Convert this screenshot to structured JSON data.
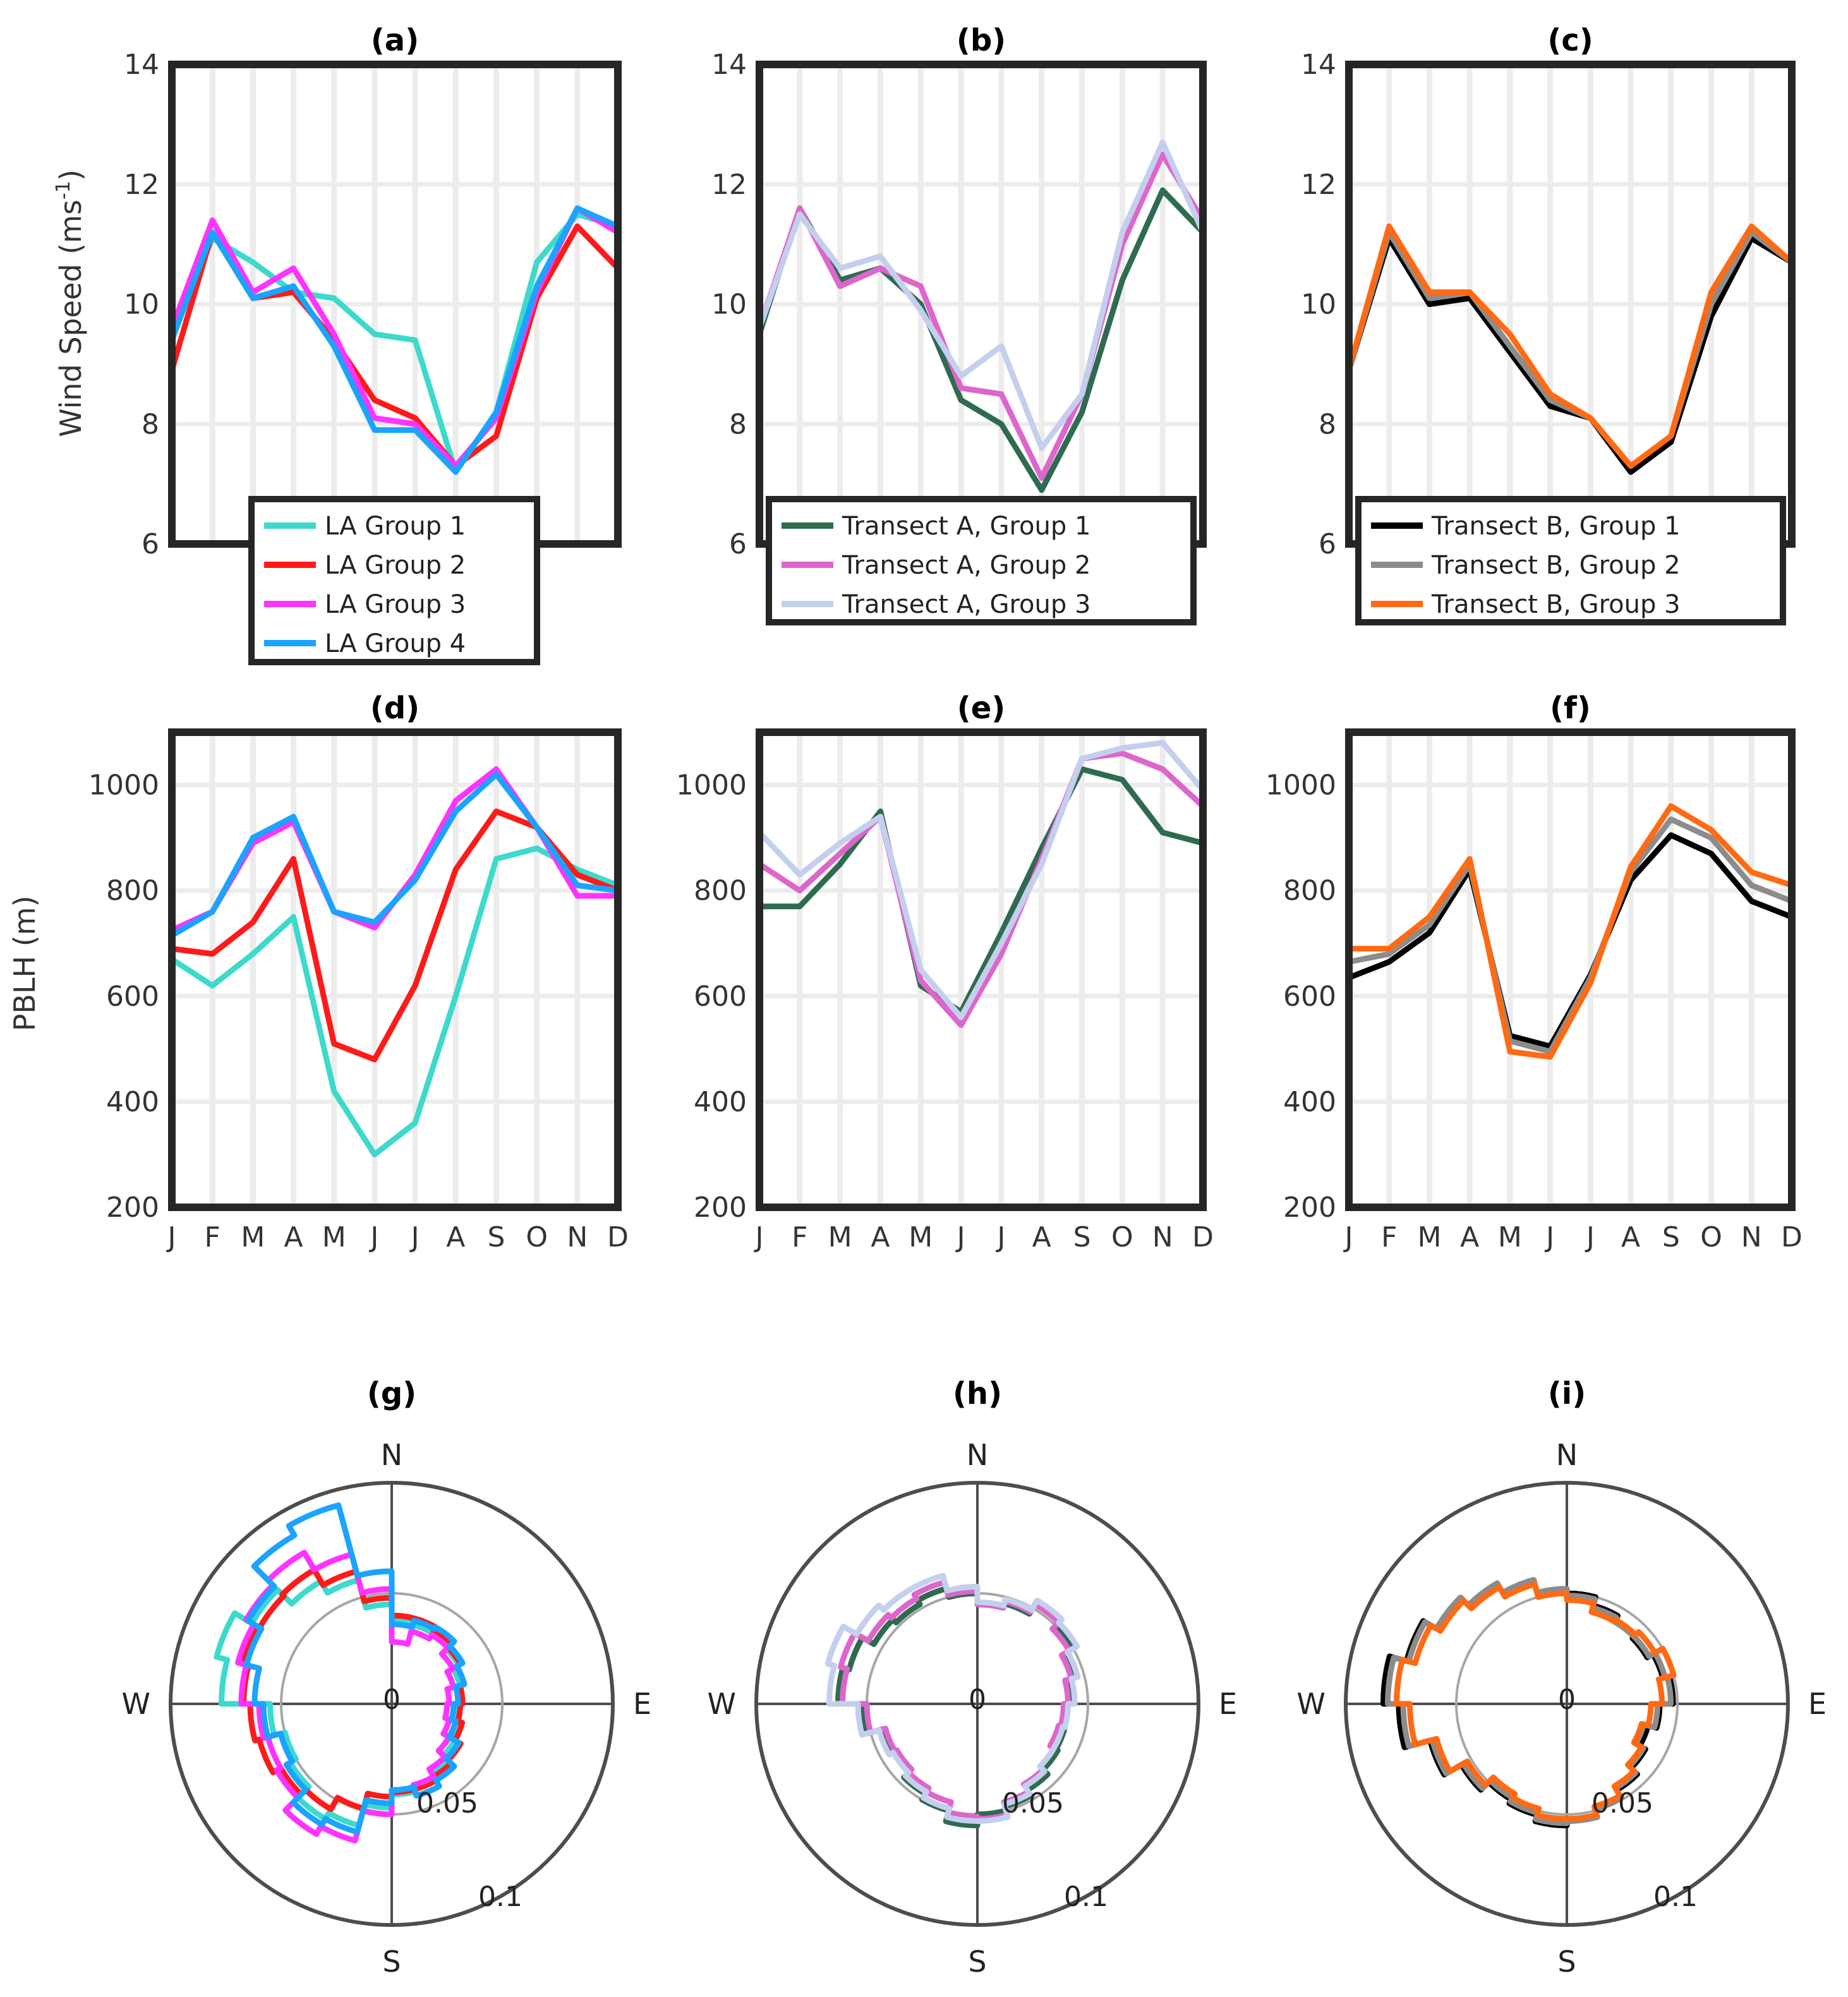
{
  "figure": {
    "line_panels": {
      "month_labels": [
        "J",
        "F",
        "M",
        "A",
        "M",
        "J",
        "J",
        "A",
        "S",
        "O",
        "N",
        "D"
      ],
      "wind_ylabel_main": "Wind Speed (ms",
      "wind_ylabel_sup": "-1",
      "wind_ylabel_close": ")",
      "pblh_ylabel": "PBLH (m)"
    },
    "polar_panels": {
      "cardinals": {
        "N": "N",
        "E": "E",
        "S": "S",
        "W": "W"
      },
      "ring_labels": [
        "0",
        "0.05",
        "0.1"
      ]
    }
  },
  "chart_data": [
    {
      "id": "a",
      "type": "line",
      "title": "(a)",
      "ylabel": "Wind Speed (ms-1)",
      "ylim": [
        6,
        14
      ],
      "yticks": [
        6,
        8,
        10,
        12,
        14
      ],
      "categories": [
        "J",
        "F",
        "M",
        "A",
        "M",
        "J",
        "J",
        "A",
        "S",
        "O",
        "N",
        "D"
      ],
      "series": [
        {
          "name": "LA Group 1",
          "color": "#3dd9cc",
          "values": [
            9.5,
            11.1,
            10.7,
            10.2,
            10.1,
            9.5,
            9.4,
            7.2,
            8.2,
            10.7,
            11.5,
            11.3
          ]
        },
        {
          "name": "LA Group 2",
          "color": "#ff1a1a",
          "values": [
            8.9,
            11.2,
            10.1,
            10.2,
            9.4,
            8.4,
            8.1,
            7.3,
            7.8,
            10.1,
            11.3,
            10.6
          ]
        },
        {
          "name": "LA Group 3",
          "color": "#ff33ff",
          "values": [
            9.6,
            11.4,
            10.2,
            10.6,
            9.5,
            8.1,
            8.0,
            7.3,
            8.1,
            10.2,
            11.6,
            11.2
          ]
        },
        {
          "name": "LA Group 4",
          "color": "#1aa3ff",
          "values": [
            9.4,
            11.2,
            10.1,
            10.3,
            9.3,
            7.9,
            7.9,
            7.2,
            8.2,
            10.3,
            11.6,
            11.3
          ]
        }
      ]
    },
    {
      "id": "b",
      "type": "line",
      "title": "(b)",
      "ylim": [
        6,
        14
      ],
      "yticks": [
        6,
        8,
        10,
        12,
        14
      ],
      "categories": [
        "J",
        "F",
        "M",
        "A",
        "M",
        "J",
        "J",
        "A",
        "S",
        "O",
        "N",
        "D"
      ],
      "series": [
        {
          "name": "Transect A, Group 1",
          "color": "#2e6b4f",
          "values": [
            9.5,
            11.6,
            10.4,
            10.6,
            10.0,
            8.4,
            8.0,
            6.9,
            8.2,
            10.4,
            11.9,
            11.2
          ]
        },
        {
          "name": "Transect A, Group 2",
          "color": "#dd66cc",
          "values": [
            9.6,
            11.6,
            10.3,
            10.6,
            10.3,
            8.6,
            8.5,
            7.1,
            8.5,
            11.0,
            12.5,
            11.4
          ]
        },
        {
          "name": "Transect A, Group 3",
          "color": "#c4cfee",
          "values": [
            9.6,
            11.5,
            10.6,
            10.8,
            9.9,
            8.8,
            9.3,
            7.6,
            8.5,
            11.2,
            12.7,
            11.2
          ]
        }
      ]
    },
    {
      "id": "c",
      "type": "line",
      "title": "(c)",
      "ylim": [
        6,
        14
      ],
      "yticks": [
        6,
        8,
        10,
        12,
        14
      ],
      "categories": [
        "J",
        "F",
        "M",
        "A",
        "M",
        "J",
        "J",
        "A",
        "S",
        "O",
        "N",
        "D"
      ],
      "series": [
        {
          "name": "Transect B, Group 1",
          "color": "#000000",
          "values": [
            8.9,
            11.1,
            10.0,
            10.1,
            9.2,
            8.3,
            8.1,
            7.2,
            7.7,
            9.8,
            11.1,
            10.7
          ]
        },
        {
          "name": "Transect B, Group 2",
          "color": "#8c8c8c",
          "values": [
            8.9,
            11.2,
            10.1,
            10.2,
            9.3,
            8.4,
            8.1,
            7.3,
            7.8,
            10.0,
            11.2,
            10.7
          ]
        },
        {
          "name": "Transect B, Group 3",
          "color": "#ff6a13",
          "values": [
            8.9,
            11.3,
            10.2,
            10.2,
            9.5,
            8.5,
            8.1,
            7.3,
            7.8,
            10.2,
            11.3,
            10.7
          ]
        }
      ]
    },
    {
      "id": "d",
      "type": "line",
      "title": "(d)",
      "ylabel": "PBLH (m)",
      "ylim": [
        200,
        1100
      ],
      "yticks": [
        200,
        400,
        600,
        800,
        1000
      ],
      "categories": [
        "J",
        "F",
        "M",
        "A",
        "M",
        "J",
        "J",
        "A",
        "S",
        "O",
        "N",
        "D"
      ],
      "series": [
        {
          "name": "LA Group 1",
          "color": "#3dd9cc",
          "values": [
            670,
            620,
            680,
            750,
            420,
            300,
            360,
            600,
            860,
            880,
            840,
            810
          ]
        },
        {
          "name": "LA Group 2",
          "color": "#ff1a1a",
          "values": [
            690,
            680,
            740,
            860,
            510,
            480,
            620,
            840,
            950,
            920,
            830,
            800
          ]
        },
        {
          "name": "LA Group 3",
          "color": "#ff33ff",
          "values": [
            725,
            760,
            890,
            930,
            760,
            730,
            830,
            970,
            1030,
            920,
            790,
            790
          ]
        },
        {
          "name": "LA Group 4",
          "color": "#1aa3ff",
          "values": [
            715,
            760,
            900,
            940,
            760,
            740,
            820,
            950,
            1020,
            920,
            810,
            800
          ]
        }
      ]
    },
    {
      "id": "e",
      "type": "line",
      "title": "(e)",
      "ylim": [
        200,
        1100
      ],
      "yticks": [
        200,
        400,
        600,
        800,
        1000
      ],
      "categories": [
        "J",
        "F",
        "M",
        "A",
        "M",
        "J",
        "J",
        "A",
        "S",
        "O",
        "N",
        "D"
      ],
      "series": [
        {
          "name": "Transect A, Group 1",
          "color": "#2e6b4f",
          "values": [
            770,
            770,
            850,
            950,
            620,
            570,
            720,
            880,
            1030,
            1010,
            910,
            890
          ]
        },
        {
          "name": "Transect A, Group 2",
          "color": "#dd66cc",
          "values": [
            850,
            800,
            870,
            940,
            630,
            545,
            680,
            860,
            1050,
            1060,
            1030,
            960
          ]
        },
        {
          "name": "Transect A, Group 3",
          "color": "#c4cfee",
          "values": [
            910,
            830,
            890,
            940,
            650,
            560,
            700,
            850,
            1050,
            1070,
            1080,
            990
          ]
        }
      ]
    },
    {
      "id": "f",
      "type": "line",
      "title": "(f)",
      "ylim": [
        200,
        1100
      ],
      "yticks": [
        200,
        400,
        600,
        800,
        1000
      ],
      "categories": [
        "J",
        "F",
        "M",
        "A",
        "M",
        "J",
        "J",
        "A",
        "S",
        "O",
        "N",
        "D"
      ],
      "series": [
        {
          "name": "Transect B, Group 1",
          "color": "#000000",
          "values": [
            635,
            665,
            720,
            840,
            525,
            505,
            640,
            820,
            905,
            870,
            780,
            750
          ]
        },
        {
          "name": "Transect B, Group 2",
          "color": "#8c8c8c",
          "values": [
            665,
            680,
            735,
            850,
            515,
            495,
            635,
            835,
            935,
            900,
            810,
            780
          ]
        },
        {
          "name": "Transect B, Group 3",
          "color": "#ff6a13",
          "values": [
            690,
            690,
            750,
            860,
            495,
            485,
            625,
            845,
            960,
            915,
            835,
            810
          ]
        }
      ]
    },
    {
      "id": "g",
      "type": "polar_histogram",
      "title": "(g)",
      "rlim": [
        0,
        0.1
      ],
      "rticks": [
        0.05,
        0.1
      ],
      "bins_deg": 15,
      "series": [
        {
          "name": "LA Group 1",
          "color": "#3dd9cc",
          "values": [
            0.038,
            0.037,
            0.037,
            0.035,
            0.032,
            0.03,
            0.029,
            0.031,
            0.033,
            0.036,
            0.038,
            0.041,
            0.047,
            0.057,
            0.06,
            0.053,
            0.05,
            0.055,
            0.077,
            0.082,
            0.073,
            0.064,
            0.058,
            0.045
          ]
        },
        {
          "name": "LA Group 2",
          "color": "#ff1a1a",
          "values": [
            0.04,
            0.04,
            0.038,
            0.036,
            0.034,
            0.032,
            0.031,
            0.033,
            0.036,
            0.038,
            0.04,
            0.04,
            0.042,
            0.049,
            0.055,
            0.058,
            0.062,
            0.064,
            0.067,
            0.07,
            0.069,
            0.07,
            0.062,
            0.048
          ]
        },
        {
          "name": "LA Group 3",
          "color": "#ff33ff",
          "values": [
            0.028,
            0.034,
            0.036,
            0.032,
            0.029,
            0.026,
            0.025,
            0.027,
            0.03,
            0.034,
            0.038,
            0.039,
            0.05,
            0.064,
            0.068,
            0.06,
            0.058,
            0.06,
            0.068,
            0.072,
            0.076,
            0.079,
            0.07,
            0.052
          ]
        },
        {
          "name": "LA Group 4",
          "color": "#1aa3ff",
          "values": [
            0.036,
            0.039,
            0.04,
            0.037,
            0.034,
            0.03,
            0.028,
            0.03,
            0.035,
            0.04,
            0.043,
            0.039,
            0.045,
            0.06,
            0.063,
            0.055,
            0.052,
            0.058,
            0.062,
            0.068,
            0.075,
            0.088,
            0.093,
            0.06
          ]
        }
      ]
    },
    {
      "id": "h",
      "type": "polar_histogram",
      "title": "(h)",
      "rlim": [
        0,
        0.1
      ],
      "rticks": [
        0.05,
        0.1
      ],
      "bins_deg": 15,
      "series": [
        {
          "name": "Transect A, Group 1",
          "color": "#2e6b4f",
          "values": [
            0.045,
            0.047,
            0.053,
            0.05,
            0.046,
            0.043,
            0.04,
            0.041,
            0.042,
            0.045,
            0.048,
            0.05,
            0.055,
            0.05,
            0.047,
            0.043,
            0.044,
            0.052,
            0.063,
            0.06,
            0.054,
            0.052,
            0.054,
            0.05
          ]
        },
        {
          "name": "Transect A, Group 2",
          "color": "#dd66cc",
          "values": [
            0.045,
            0.048,
            0.052,
            0.048,
            0.044,
            0.041,
            0.039,
            0.038,
            0.04,
            0.042,
            0.046,
            0.052,
            0.051,
            0.046,
            0.044,
            0.042,
            0.043,
            0.05,
            0.061,
            0.064,
            0.057,
            0.055,
            0.057,
            0.051
          ]
        },
        {
          "name": "Transect A, Group 3",
          "color": "#c4cfee",
          "values": [
            0.046,
            0.049,
            0.054,
            0.052,
            0.047,
            0.044,
            0.041,
            0.04,
            0.04,
            0.043,
            0.047,
            0.053,
            0.053,
            0.049,
            0.046,
            0.044,
            0.046,
            0.054,
            0.067,
            0.07,
            0.063,
            0.06,
            0.06,
            0.053
          ]
        }
      ]
    },
    {
      "id": "i",
      "type": "polar_histogram",
      "title": "(i)",
      "rlim": [
        0,
        0.1
      ],
      "rticks": [
        0.05,
        0.1
      ],
      "bins_deg": 15,
      "series": [
        {
          "name": "Transect B, Group 1",
          "color": "#000000",
          "values": [
            0.05,
            0.046,
            0.043,
            0.042,
            0.045,
            0.048,
            0.042,
            0.038,
            0.041,
            0.045,
            0.049,
            0.053,
            0.055,
            0.052,
            0.05,
            0.055,
            0.064,
            0.076,
            0.083,
            0.075,
            0.068,
            0.062,
            0.058,
            0.052
          ]
        },
        {
          "name": "Transect B, Group 2",
          "color": "#8c8c8c",
          "values": [
            0.049,
            0.045,
            0.043,
            0.043,
            0.046,
            0.047,
            0.041,
            0.036,
            0.04,
            0.044,
            0.049,
            0.053,
            0.054,
            0.051,
            0.049,
            0.054,
            0.063,
            0.074,
            0.081,
            0.074,
            0.068,
            0.063,
            0.058,
            0.052
          ]
        },
        {
          "name": "Transect B, Group 3",
          "color": "#ff6a13",
          "values": [
            0.047,
            0.043,
            0.044,
            0.046,
            0.05,
            0.043,
            0.038,
            0.035,
            0.039,
            0.043,
            0.048,
            0.052,
            0.052,
            0.049,
            0.047,
            0.052,
            0.061,
            0.071,
            0.077,
            0.071,
            0.066,
            0.061,
            0.056,
            0.05
          ]
        }
      ]
    }
  ]
}
